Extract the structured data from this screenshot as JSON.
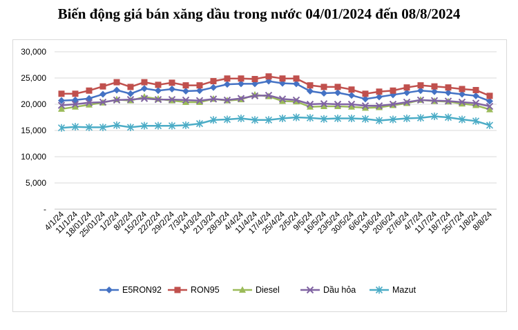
{
  "title": "Biến động giá bán xăng dầu trong nước 04/01/2024 đến 08/8/2024",
  "chart_data": {
    "type": "line",
    "title": "Biến động giá bán xăng dầu trong nước 04/01/2024 đến 08/8/2024",
    "xlabel": "",
    "ylabel": "",
    "ylim": [
      0,
      30000
    ],
    "yticks": [
      {
        "value": 0,
        "label": "-"
      },
      {
        "value": 5000,
        "label": "5,000"
      },
      {
        "value": 10000,
        "label": "10,000"
      },
      {
        "value": 15000,
        "label": "15,000"
      },
      {
        "value": 20000,
        "label": "20,000"
      },
      {
        "value": 25000,
        "label": "25,000"
      },
      {
        "value": 30000,
        "label": "30,000"
      }
    ],
    "grid": true,
    "legend_position": "bottom",
    "categories": [
      "4/1/24",
      "11/1/24",
      "18/01/24",
      "25/01/24",
      "1/2/24",
      "8/2/24",
      "15/2/24",
      "22/2/24",
      "29/2/24",
      "7/3/24",
      "14/3/24",
      "21/3/24",
      "28/3/24",
      "4/4/24",
      "11/4/24",
      "17/4/24",
      "25/4/24",
      "2/5/24",
      "9/5/24",
      "16/5/24",
      "23/5/24",
      "30/5/24",
      "6/6/24",
      "13/6/24",
      "20/6/24",
      "27/6/24",
      "4/7/24",
      "11/7/24",
      "18/7/24",
      "25/7/24",
      "1/8/24",
      "8/8/24"
    ],
    "series": [
      {
        "name": "E5RON92",
        "color": "#4472c4",
        "marker": "diamond",
        "values": [
          20700,
          20800,
          21100,
          21900,
          22700,
          22000,
          23000,
          22600,
          22900,
          22500,
          22600,
          23200,
          23800,
          23900,
          23900,
          24400,
          24000,
          23900,
          22500,
          22100,
          22200,
          21700,
          21000,
          21400,
          21800,
          22200,
          22600,
          22400,
          22200,
          21900,
          21600,
          20600
        ]
      },
      {
        "name": "RON95",
        "color": "#c0504d",
        "marker": "square",
        "values": [
          22000,
          22000,
          22600,
          23400,
          24200,
          23300,
          24200,
          23700,
          24100,
          23600,
          23600,
          24400,
          24900,
          24900,
          24800,
          25300,
          24900,
          24900,
          23600,
          23300,
          23300,
          22800,
          22000,
          22400,
          22600,
          23200,
          23600,
          23400,
          23200,
          22900,
          22700,
          21600
        ]
      },
      {
        "name": "Diesel",
        "color": "#9bbb59",
        "marker": "triangle",
        "values": [
          19100,
          19500,
          19900,
          20300,
          20900,
          20700,
          21400,
          21000,
          20700,
          20400,
          20400,
          21000,
          20700,
          20900,
          21800,
          21500,
          20600,
          20500,
          19500,
          19600,
          19600,
          19500,
          19300,
          19400,
          19800,
          20200,
          20800,
          20600,
          20500,
          20100,
          19800,
          19000
        ]
      },
      {
        "name": "Dầu hỏa",
        "color": "#8064a2",
        "marker": "x",
        "values": [
          19800,
          20000,
          20300,
          20400,
          20800,
          20900,
          21100,
          20900,
          20900,
          20800,
          20700,
          21000,
          20800,
          21100,
          21600,
          21700,
          21000,
          20800,
          20000,
          20100,
          20000,
          20000,
          19700,
          19700,
          20000,
          20400,
          20800,
          20700,
          20600,
          20400,
          20200,
          19600
        ]
      },
      {
        "name": "Mazut",
        "color": "#4bacc6",
        "marker": "asterisk",
        "values": [
          15500,
          15700,
          15600,
          15600,
          16000,
          15600,
          15900,
          15900,
          15900,
          16000,
          16300,
          17000,
          17100,
          17300,
          17000,
          17000,
          17300,
          17500,
          17400,
          17200,
          17300,
          17300,
          17200,
          16900,
          17100,
          17300,
          17400,
          17700,
          17500,
          17100,
          16800,
          16000
        ]
      }
    ]
  }
}
